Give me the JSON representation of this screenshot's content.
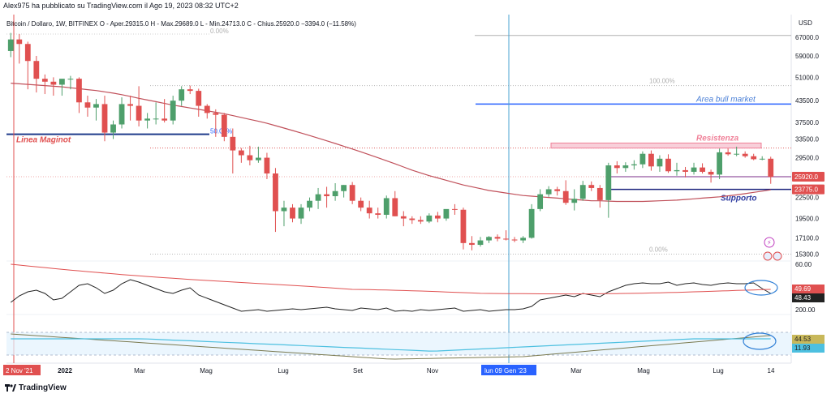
{
  "publisher_line": "Alex975 ha pubblicato su TradingView.com il Ago 19, 2023 08:32 UTC+2",
  "symbol_line": "Bitcoin / Dollaro, 1W, BITFINEX  O - Aper.29315.0  H - Max.29689.0  L - Min.24713.0  C - Chius.25920.0  −3394.0 (−11.58%)",
  "currency": "USD",
  "brand": "TradingView",
  "colors": {
    "up": "#4e9f6b",
    "down": "#e05050",
    "ma": "#c0505a",
    "blue_line": "#2962ff",
    "resist": "#f08098",
    "support": "#1a237e"
  },
  "chart_data": {
    "type": "candlestick",
    "timeframe": "1W",
    "y_ticks": [
      "67000.0",
      "59000.0",
      "51000.0",
      "43500.0",
      "37500.0",
      "33500.0",
      "29500.0",
      "25920.0",
      "23775.0",
      "22500.0",
      "19500.0",
      "17100.0",
      "15300.0"
    ],
    "y_range": [
      14600,
      70000
    ],
    "x_labels": [
      "2 Nov '21",
      "2022",
      "Mar",
      "Mag",
      "Lug",
      "Set",
      "Nov",
      "lun 09 Gen '23",
      "Mar",
      "Mag",
      "Lug",
      "14"
    ],
    "candles": [
      [
        61000,
        69000,
        58500,
        66000
      ],
      [
        66000,
        68500,
        56000,
        64000
      ],
      [
        64000,
        65000,
        47000,
        57000
      ],
      [
        57000,
        59000,
        46000,
        50500
      ],
      [
        50500,
        52000,
        45500,
        49500
      ],
      [
        49500,
        51000,
        45000,
        48500
      ],
      [
        48500,
        50000,
        45000,
        50500
      ],
      [
        50500,
        51500,
        47000,
        50500
      ],
      [
        50500,
        51000,
        40000,
        43000
      ],
      [
        43000,
        45000,
        39000,
        41500
      ],
      [
        41500,
        44000,
        38000,
        42500
      ],
      [
        42500,
        45000,
        33000,
        35000
      ],
      [
        35000,
        38000,
        33500,
        37000
      ],
      [
        37000,
        44500,
        36000,
        42500
      ],
      [
        42500,
        45000,
        38000,
        42000
      ],
      [
        42000,
        48000,
        36500,
        38000
      ],
      [
        38000,
        40000,
        36000,
        38500
      ],
      [
        38500,
        43000,
        37000,
        38500
      ],
      [
        38500,
        44000,
        37500,
        38000
      ],
      [
        38000,
        45000,
        37000,
        43500
      ],
      [
        43500,
        48000,
        42000,
        47000
      ],
      [
        47000,
        48200,
        45500,
        46500
      ],
      [
        46500,
        47200,
        39000,
        42000
      ],
      [
        42000,
        42500,
        38500,
        40000
      ],
      [
        40000,
        41000,
        34000,
        39500
      ],
      [
        39500,
        40000,
        33000,
        34000
      ],
      [
        34000,
        36000,
        26500,
        31000
      ],
      [
        31000,
        31500,
        28500,
        30000
      ],
      [
        30000,
        32000,
        28000,
        29000
      ],
      [
        29000,
        31800,
        28500,
        29500
      ],
      [
        29500,
        30500,
        25500,
        26500
      ],
      [
        26500,
        27500,
        17800,
        20500
      ],
      [
        20500,
        22000,
        18500,
        21000
      ],
      [
        21000,
        21500,
        19000,
        19500
      ],
      [
        19500,
        21500,
        18800,
        21000
      ],
      [
        21000,
        22500,
        20500,
        22000
      ],
      [
        22000,
        24000,
        20800,
        23000
      ],
      [
        23000,
        24200,
        21000,
        22700
      ],
      [
        22700,
        24800,
        22000,
        23500
      ],
      [
        23500,
        24500,
        22500,
        24500
      ],
      [
        24500,
        25000,
        21500,
        22000
      ],
      [
        22000,
        22500,
        20500,
        21000
      ],
      [
        21000,
        22000,
        19500,
        20200
      ],
      [
        20200,
        21000,
        19500,
        20000
      ],
      [
        20000,
        22800,
        19500,
        22400
      ],
      [
        22400,
        23500,
        19800,
        19800
      ],
      [
        19800,
        20500,
        18500,
        19500
      ],
      [
        19500,
        19800,
        18800,
        19300
      ],
      [
        19300,
        19800,
        18800,
        19100
      ],
      [
        19100,
        20200,
        18900,
        19900
      ],
      [
        19900,
        20400,
        19000,
        19500
      ],
      [
        19500,
        20500,
        19200,
        20800
      ],
      [
        20800,
        21500,
        20000,
        20700
      ],
      [
        20700,
        21000,
        15800,
        16500
      ],
      [
        16500,
        17300,
        15700,
        16300
      ],
      [
        16300,
        17200,
        16100,
        16800
      ],
      [
        16800,
        17300,
        16500,
        17200
      ],
      [
        17200,
        17500,
        16700,
        17000
      ],
      [
        17000,
        18000,
        16800,
        16900
      ],
      [
        16900,
        17200,
        16600,
        16800
      ],
      [
        16800,
        17300,
        16500,
        17100
      ],
      [
        17100,
        21500,
        17000,
        20800
      ],
      [
        20800,
        23800,
        20500,
        23000
      ],
      [
        23000,
        24300,
        22600,
        23800
      ],
      [
        23800,
        24200,
        22800,
        23500
      ],
      [
        23500,
        25300,
        21400,
        21700
      ],
      [
        21700,
        23800,
        20600,
        22300
      ],
      [
        22300,
        25200,
        22000,
        24500
      ],
      [
        24500,
        25100,
        23500,
        24000
      ],
      [
        24000,
        24500,
        21000,
        22100
      ],
      [
        22100,
        28500,
        19600,
        28000
      ],
      [
        28000,
        28800,
        26500,
        27500
      ],
      [
        27500,
        28600,
        26800,
        28000
      ],
      [
        28000,
        29000,
        27200,
        28200
      ],
      [
        28200,
        30800,
        27500,
        30300
      ],
      [
        30300,
        31000,
        27000,
        27800
      ],
      [
        27800,
        30000,
        26800,
        29300
      ],
      [
        29300,
        30200,
        26600,
        26900
      ],
      [
        26900,
        28500,
        26100,
        27100
      ],
      [
        27100,
        27700,
        25800,
        26800
      ],
      [
        26800,
        28500,
        26300,
        27600
      ],
      [
        27600,
        28400,
        26500,
        26800
      ],
      [
        26800,
        27200,
        24900,
        26300
      ],
      [
        26300,
        31400,
        25500,
        30600
      ],
      [
        30600,
        31400,
        29900,
        30200
      ],
      [
        30200,
        31800,
        29800,
        30300
      ],
      [
        30300,
        30800,
        29500,
        29800
      ],
      [
        29800,
        30300,
        29000,
        29200
      ],
      [
        29200,
        29800,
        29000,
        29300
      ],
      [
        29300,
        29700,
        24700,
        25900
      ]
    ],
    "ma_long": [
      49000,
      48800,
      48600,
      48400,
      48200,
      48000,
      47800,
      47500,
      47200,
      46900,
      46600,
      46200,
      45800,
      45300,
      44800,
      44200,
      43700,
      43200,
      42700,
      42200,
      41800,
      41400,
      41000,
      40600,
      40200,
      39800,
      39300,
      38800,
      38300,
      37800,
      37300,
      36700,
      36100,
      35500,
      34900,
      34300,
      33700,
      33100,
      32500,
      31900,
      31300,
      30700,
      30100,
      29500,
      28900,
      28300,
      27700,
      27100,
      26600,
      26100,
      25700,
      25300,
      24900,
      24500,
      24200,
      23900,
      23600,
      23400,
      23200,
      23000,
      22800,
      22700,
      22600,
      22500,
      22400,
      22300,
      22200,
      22100,
      22000,
      22000,
      21950,
      21900,
      21900,
      21900,
      21900,
      21950,
      22000,
      22050,
      22100,
      22200,
      22300,
      22400,
      22500,
      22600,
      22750,
      22900,
      23100,
      23300,
      23500,
      23700
    ],
    "levels": [
      {
        "label": "",
        "price": 67800,
        "style": "gray"
      },
      {
        "label": "100.00%",
        "price": 48200,
        "style": "dotted"
      },
      {
        "label": "Area bull market",
        "price": 42500,
        "style": "blue"
      },
      {
        "label": "Linea Maginot",
        "price": 34600,
        "style": "blue"
      },
      {
        "label": "50.00%",
        "price": 31500,
        "style": "dotted-red"
      },
      {
        "label": "Resistenza",
        "price": 32000,
        "style": "zone"
      },
      {
        "label": "0.00%",
        "price": 15300,
        "style": "dotted"
      },
      {
        "label": "Supporto",
        "price": 23775,
        "style": "support"
      }
    ],
    "fib_labels": [
      "0.00%",
      "100.00%",
      "50.00%",
      "50.00%",
      "0.00%"
    ],
    "price_tags": [
      {
        "text": "25920.0",
        "color": "#e05050"
      },
      {
        "text": "23775.0",
        "color": "#e05050"
      }
    ],
    "osc1": {
      "ticks": [
        "60.00",
        "200.00"
      ],
      "values": [
        "49.69",
        "48.43"
      ]
    },
    "osc2": {
      "values": [
        "44.53",
        "11.93"
      ]
    }
  }
}
